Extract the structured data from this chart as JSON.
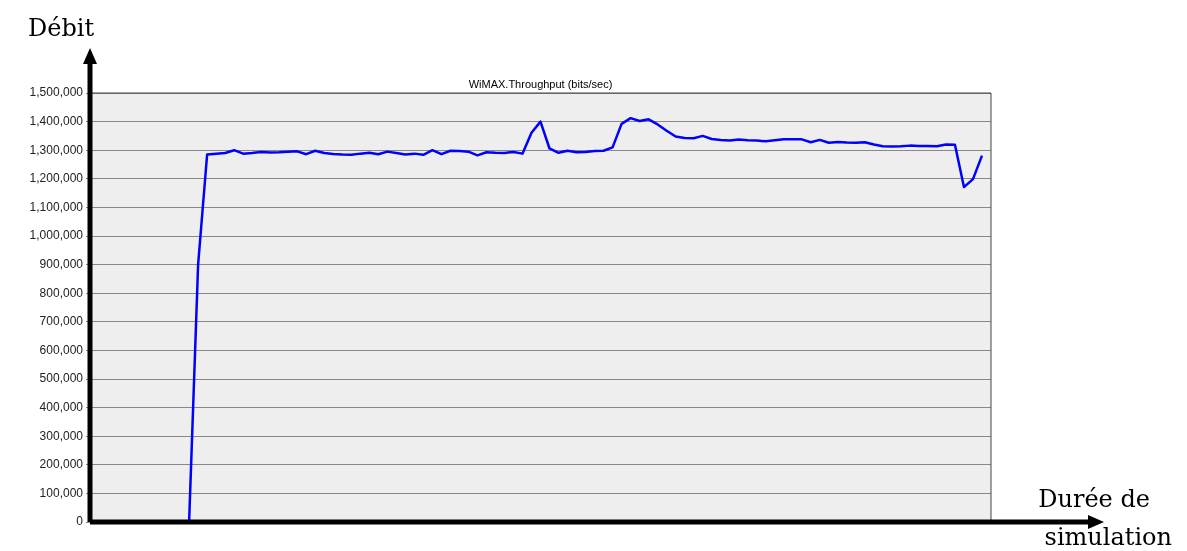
{
  "chart_data": {
    "type": "line",
    "title": "WiMAX.Throughput (bits/sec)",
    "xlabel": "Durée de simulation",
    "ylabel": "Débit",
    "categories": [
      null,
      null,
      null,
      null,
      null,
      null,
      null,
      null,
      null,
      null,
      null,
      null,
      null,
      null,
      null,
      null,
      null,
      null,
      null,
      null,
      null,
      null,
      null,
      null,
      null,
      null,
      null,
      null,
      null,
      null,
      null,
      null,
      null,
      null,
      null,
      null,
      null,
      null,
      null,
      null,
      null,
      null,
      null,
      null,
      null,
      null,
      null,
      null,
      null,
      null,
      null,
      null,
      null,
      null,
      null,
      null,
      null,
      null,
      null,
      null,
      null,
      null,
      null,
      null,
      null,
      null,
      null,
      null,
      null,
      null,
      null,
      null,
      null,
      null,
      null,
      null,
      null,
      null,
      null,
      null,
      null,
      null,
      null,
      null,
      null,
      null,
      null,
      null,
      null,
      null,
      null,
      null,
      null,
      null,
      null,
      null,
      null,
      null,
      null,
      null,
      null
    ],
    "series": [
      {
        "color": "#0000ff",
        "values": [
          null,
          null,
          null,
          null,
          null,
          null,
          null,
          null,
          null,
          null,
          null,
          0,
          900000,
          1285000,
          1288000,
          1290000,
          1300000,
          1288000,
          1290000,
          1294000,
          1292000,
          1293000,
          1295000,
          1296000,
          1286000,
          1298000,
          1290000,
          1287000,
          1285000,
          1284000,
          1288000,
          1291000,
          1286000,
          1295000,
          1290000,
          1285000,
          1288000,
          1284000,
          1300000,
          1286000,
          1298000,
          1297000,
          1295000,
          1282000,
          1293000,
          1291000,
          1290000,
          1294000,
          1288000,
          1361000,
          1400000,
          1306000,
          1291000,
          1298000,
          1293000,
          1294000,
          1297000,
          1298000,
          1310000,
          1392000,
          1412000,
          1402000,
          1408000,
          1390000,
          1368000,
          1348000,
          1343000,
          1342000,
          1350000,
          1339000,
          1336000,
          1334000,
          1337000,
          1335000,
          1334000,
          1331000,
          1335000,
          1338000,
          1338000,
          1338000,
          1328000,
          1336000,
          1326000,
          1329000,
          1327000,
          1326000,
          1328000,
          1320000,
          1314000,
          1313000,
          1314000,
          1316000,
          1315000,
          1315000,
          1314000,
          1320000,
          1319000,
          1171000,
          1199000,
          1281000,
          null
        ]
      }
    ],
    "ylim": [
      0,
      1500000
    ],
    "yticks": [
      {
        "value": 0,
        "label": "0"
      },
      {
        "value": 100000,
        "label": "100,000"
      },
      {
        "value": 200000,
        "label": "200,000"
      },
      {
        "value": 300000,
        "label": "300,000"
      },
      {
        "value": 400000,
        "label": "400,000"
      },
      {
        "value": 500000,
        "label": "500,000"
      },
      {
        "value": 600000,
        "label": "600,000"
      },
      {
        "value": 700000,
        "label": "700,000"
      },
      {
        "value": 800000,
        "label": "800,000"
      },
      {
        "value": 900000,
        "label": "900,000"
      },
      {
        "value": 1000000,
        "label": "1,000,000"
      },
      {
        "value": 1100000,
        "label": "1,100,000"
      },
      {
        "value": 1200000,
        "label": "1,200,000"
      },
      {
        "value": 1300000,
        "label": "1,300,000"
      },
      {
        "value": 1400000,
        "label": "1,400,000"
      },
      {
        "value": 1500000,
        "label": "1,500,000"
      }
    ],
    "grid": "y",
    "legend": false,
    "marker": "none",
    "line_style": "solid",
    "tick_labels": "y"
  }
}
